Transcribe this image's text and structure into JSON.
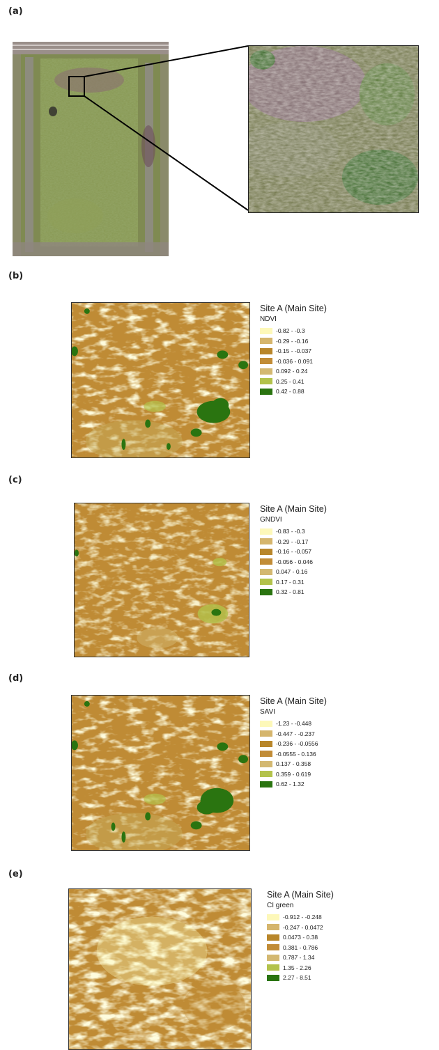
{
  "panels": {
    "a": {
      "label": "(a)"
    },
    "b": {
      "label": "(b)",
      "site_title": "Site A (Main Site)",
      "index_name": "NDVI",
      "classes": [
        {
          "range": "-0.82 - -0.3",
          "color": "#fdf8b9"
        },
        {
          "range": "-0.29 - -0.16",
          "color": "#d5b56c"
        },
        {
          "range": "-0.15 - -0.037",
          "color": "#b8862a"
        },
        {
          "range": "-0.036 - 0.091",
          "color": "#c18c36"
        },
        {
          "range": "0.092 - 0.24",
          "color": "#d3b871"
        },
        {
          "range": "0.25 - 0.41",
          "color": "#b3c24b"
        },
        {
          "range": "0.42 - 0.88",
          "color": "#2a7410"
        }
      ]
    },
    "c": {
      "label": "(c)",
      "site_title": "Site A (Main Site)",
      "index_name": "GNDVI",
      "classes": [
        {
          "range": "-0.83 - -0.3",
          "color": "#fdf8b9"
        },
        {
          "range": "-0.29 - -0.17",
          "color": "#d5b56c"
        },
        {
          "range": "-0.16 - -0.057",
          "color": "#b8862a"
        },
        {
          "range": "-0.056 - 0.046",
          "color": "#c18c36"
        },
        {
          "range": "0.047 - 0.16",
          "color": "#d3b871"
        },
        {
          "range": "0.17 - 0.31",
          "color": "#b3c24b"
        },
        {
          "range": "0.32 - 0.81",
          "color": "#2a7410"
        }
      ]
    },
    "d": {
      "label": "(d)",
      "site_title": "Site A (Main Site)",
      "index_name": "SAVI",
      "classes": [
        {
          "range": "-1.23 - -0.448",
          "color": "#fdf8b9"
        },
        {
          "range": "-0.447 - -0.237",
          "color": "#d5b56c"
        },
        {
          "range": "-0.236 - -0.0556",
          "color": "#b8862a"
        },
        {
          "range": "-0.0555 - 0.136",
          "color": "#c18c36"
        },
        {
          "range": "0.137 - 0.358",
          "color": "#d3b871"
        },
        {
          "range": "0.359 - 0.619",
          "color": "#b3c24b"
        },
        {
          "range": "0.62 - 1.32",
          "color": "#2a7410"
        }
      ]
    },
    "e": {
      "label": "(e)",
      "site_title": "Site A (Main Site)",
      "index_name": "CI green",
      "classes": [
        {
          "range": "-0.912 - -0.248",
          "color": "#fdf8b9"
        },
        {
          "range": "-0.247 - 0.0472",
          "color": "#d5b56c"
        },
        {
          "range": "0.0473 - 0.38",
          "color": "#b8862a"
        },
        {
          "range": "0.381 - 0.786",
          "color": "#c18c36"
        },
        {
          "range": "0.787 - 1.34",
          "color": "#d3b871"
        },
        {
          "range": "1.35 - 2.26",
          "color": "#b3c24b"
        },
        {
          "range": "2.27 - 8.51",
          "color": "#2a7410"
        }
      ]
    }
  }
}
